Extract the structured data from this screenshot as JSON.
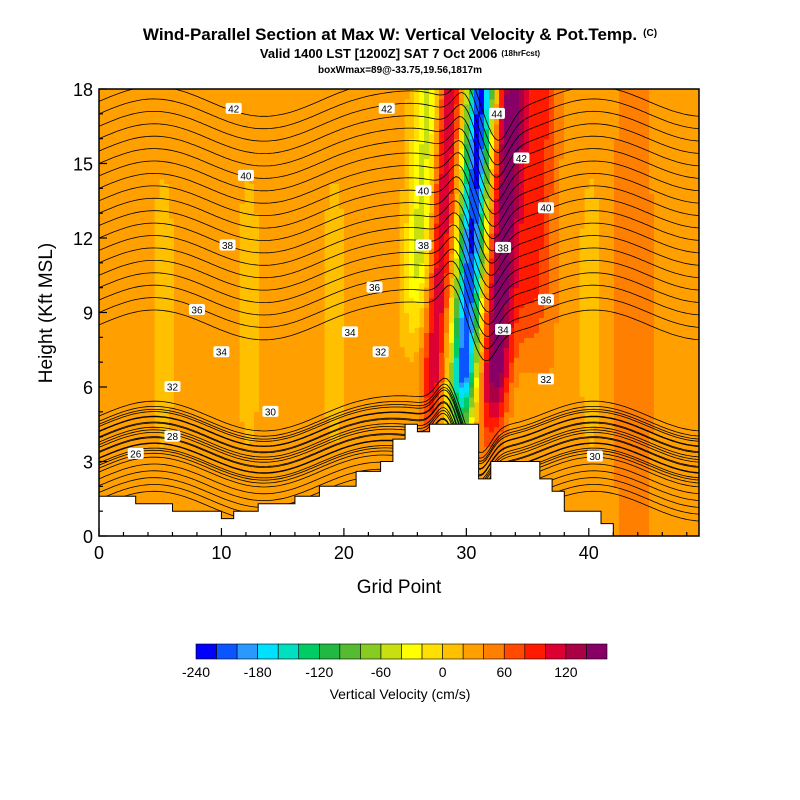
{
  "chart_data": {
    "type": "heatmap",
    "title": "Wind-Parallel Section at Max W: Vertical Velocity & Pot.Temp.",
    "title_mark": "(C)",
    "subtitle": "Valid 1400 LST [1200Z] SAT 7 Oct 2006",
    "subtitle_note": "(18hrFcst)",
    "subtitle2": "boxWmax=89@-33.75,19.56,1817m",
    "xlabel": "Grid Point",
    "ylabel": "Height (Kft MSL)",
    "xlim": [
      0,
      49
    ],
    "ylim": [
      0,
      18
    ],
    "x_ticks": [
      0,
      10,
      20,
      30,
      40
    ],
    "y_ticks": [
      0,
      3,
      6,
      9,
      12,
      15,
      18
    ],
    "colorbar": {
      "label": "Vertical Velocity (cm/s)",
      "tick_labels": [
        "-240",
        "-180",
        "-120",
        "-60",
        "0",
        "60",
        "120"
      ],
      "colors": [
        "#0000ff",
        "#0a55ff",
        "#2a99ff",
        "#00e0ff",
        "#00e0c0",
        "#00cc66",
        "#22b844",
        "#55bb33",
        "#88cc22",
        "#c8e010",
        "#ffff00",
        "#ffe000",
        "#ffc000",
        "#ffa000",
        "#ff7f00",
        "#ff4a00",
        "#ff1a00",
        "#dd0033",
        "#aa0044",
        "#880066"
      ]
    },
    "theta_contour_labels": [
      {
        "text": "42",
        "x": 11,
        "y": 17.2
      },
      {
        "text": "40",
        "x": 12,
        "y": 14.5
      },
      {
        "text": "38",
        "x": 10.5,
        "y": 11.7
      },
      {
        "text": "36",
        "x": 8,
        "y": 9.1
      },
      {
        "text": "34",
        "x": 10,
        "y": 7.4
      },
      {
        "text": "32",
        "x": 6,
        "y": 6.0
      },
      {
        "text": "30",
        "x": 14,
        "y": 5.0
      },
      {
        "text": "28",
        "x": 6,
        "y": 4.0
      },
      {
        "text": "26",
        "x": 3,
        "y": 3.3
      },
      {
        "text": "42",
        "x": 23.5,
        "y": 17.2
      },
      {
        "text": "40",
        "x": 26.5,
        "y": 13.9
      },
      {
        "text": "38",
        "x": 26.5,
        "y": 11.7
      },
      {
        "text": "36",
        "x": 22.5,
        "y": 10.0
      },
      {
        "text": "34",
        "x": 20.5,
        "y": 8.2
      },
      {
        "text": "32",
        "x": 23,
        "y": 7.4
      },
      {
        "text": "44",
        "x": 32.5,
        "y": 17.0
      },
      {
        "text": "42",
        "x": 34.5,
        "y": 15.2
      },
      {
        "text": "40",
        "x": 36.5,
        "y": 13.2
      },
      {
        "text": "38",
        "x": 33,
        "y": 11.6
      },
      {
        "text": "36",
        "x": 36.5,
        "y": 9.5
      },
      {
        "text": "34",
        "x": 33,
        "y": 8.3
      },
      {
        "text": "32",
        "x": 36.5,
        "y": 6.3
      },
      {
        "text": "30",
        "x": 40.5,
        "y": 3.2
      }
    ],
    "terrain": {
      "x": [
        0,
        3,
        3,
        6,
        6,
        10,
        10,
        11,
        11,
        13,
        13,
        16,
        16,
        18,
        18,
        21,
        21,
        23,
        23,
        24,
        24,
        25,
        25,
        26,
        26,
        27,
        27,
        28,
        28,
        31,
        31,
        32,
        32,
        33,
        33,
        36,
        36,
        37,
        37,
        38,
        38,
        41,
        41,
        42,
        42,
        49
      ],
      "height": [
        1.6,
        1.6,
        1.3,
        1.3,
        1.0,
        1.0,
        0.7,
        0.7,
        1.0,
        1.0,
        1.3,
        1.3,
        1.6,
        1.6,
        2.0,
        2.0,
        2.6,
        2.6,
        3.0,
        3.0,
        3.9,
        3.9,
        4.5,
        4.5,
        4.2,
        4.2,
        4.5,
        4.5,
        4.5,
        4.5,
        2.3,
        2.3,
        3.0,
        3.0,
        3.0,
        3.0,
        2.3,
        2.3,
        1.8,
        1.8,
        1.0,
        1.0,
        0.5,
        0.5,
        0,
        0
      ]
    }
  }
}
